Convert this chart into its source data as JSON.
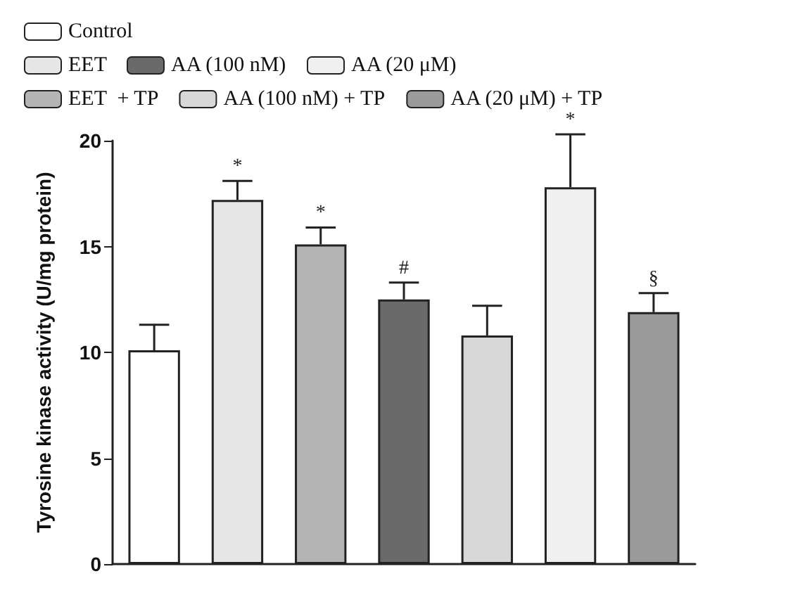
{
  "chart_data": {
    "type": "bar",
    "ylabel": "Tyrosine kinase activity (U/mg protein)",
    "categories": [
      null,
      null,
      null,
      null,
      null,
      null,
      null
    ],
    "series": [
      {
        "name": "Control",
        "color": "#ffffff",
        "values": [
          10.1,
          null,
          null,
          null,
          null,
          null,
          null
        ],
        "errors": [
          1.2,
          null,
          null,
          null,
          null,
          null,
          null
        ]
      },
      {
        "name": "EET",
        "color": "#e6e6e6",
        "values": [
          null,
          17.2,
          null,
          null,
          null,
          null,
          null
        ],
        "errors": [
          null,
          0.9,
          null,
          null,
          null,
          null,
          null
        ],
        "value_labels": [
          null,
          "*",
          null,
          null,
          null,
          null,
          null
        ]
      },
      {
        "name": "EET  + TP",
        "color": "#b4b4b4",
        "values": [
          null,
          null,
          15.1,
          null,
          null,
          null,
          null
        ],
        "errors": [
          null,
          null,
          0.8,
          null,
          null,
          null,
          null
        ],
        "value_labels": [
          null,
          null,
          "*",
          null,
          null,
          null,
          null
        ]
      },
      {
        "name": "AA (100 nM)",
        "color": "#6a6a6a",
        "values": [
          null,
          null,
          null,
          12.5,
          null,
          null,
          null
        ],
        "errors": [
          null,
          null,
          null,
          0.8,
          null,
          null,
          null
        ],
        "value_labels": [
          null,
          null,
          null,
          "#",
          null,
          null,
          null
        ]
      },
      {
        "name": "AA (100 nM) + TP",
        "color": "#d8d8d8",
        "values": [
          null,
          null,
          null,
          null,
          10.8,
          null,
          null
        ],
        "errors": [
          null,
          null,
          null,
          null,
          1.4,
          null,
          null
        ]
      },
      {
        "name": "AA (20 μM)",
        "color": "#f0f0f0",
        "values": [
          null,
          null,
          null,
          null,
          null,
          17.8,
          null
        ],
        "errors": [
          null,
          null,
          null,
          null,
          null,
          2.5,
          null
        ],
        "value_labels": [
          null,
          null,
          null,
          null,
          null,
          "*",
          null
        ]
      },
      {
        "name": "AA (20 μM) + TP",
        "color": "#9a9a9a",
        "values": [
          null,
          null,
          null,
          null,
          null,
          null,
          11.9
        ],
        "errors": [
          null,
          null,
          null,
          null,
          null,
          null,
          0.9
        ],
        "value_labels": [
          null,
          null,
          null,
          null,
          null,
          null,
          "§"
        ]
      }
    ],
    "ylim": [
      0,
      20
    ],
    "yticks": [
      0,
      5,
      10,
      15,
      20
    ],
    "grid": false,
    "legend": "top left"
  }
}
